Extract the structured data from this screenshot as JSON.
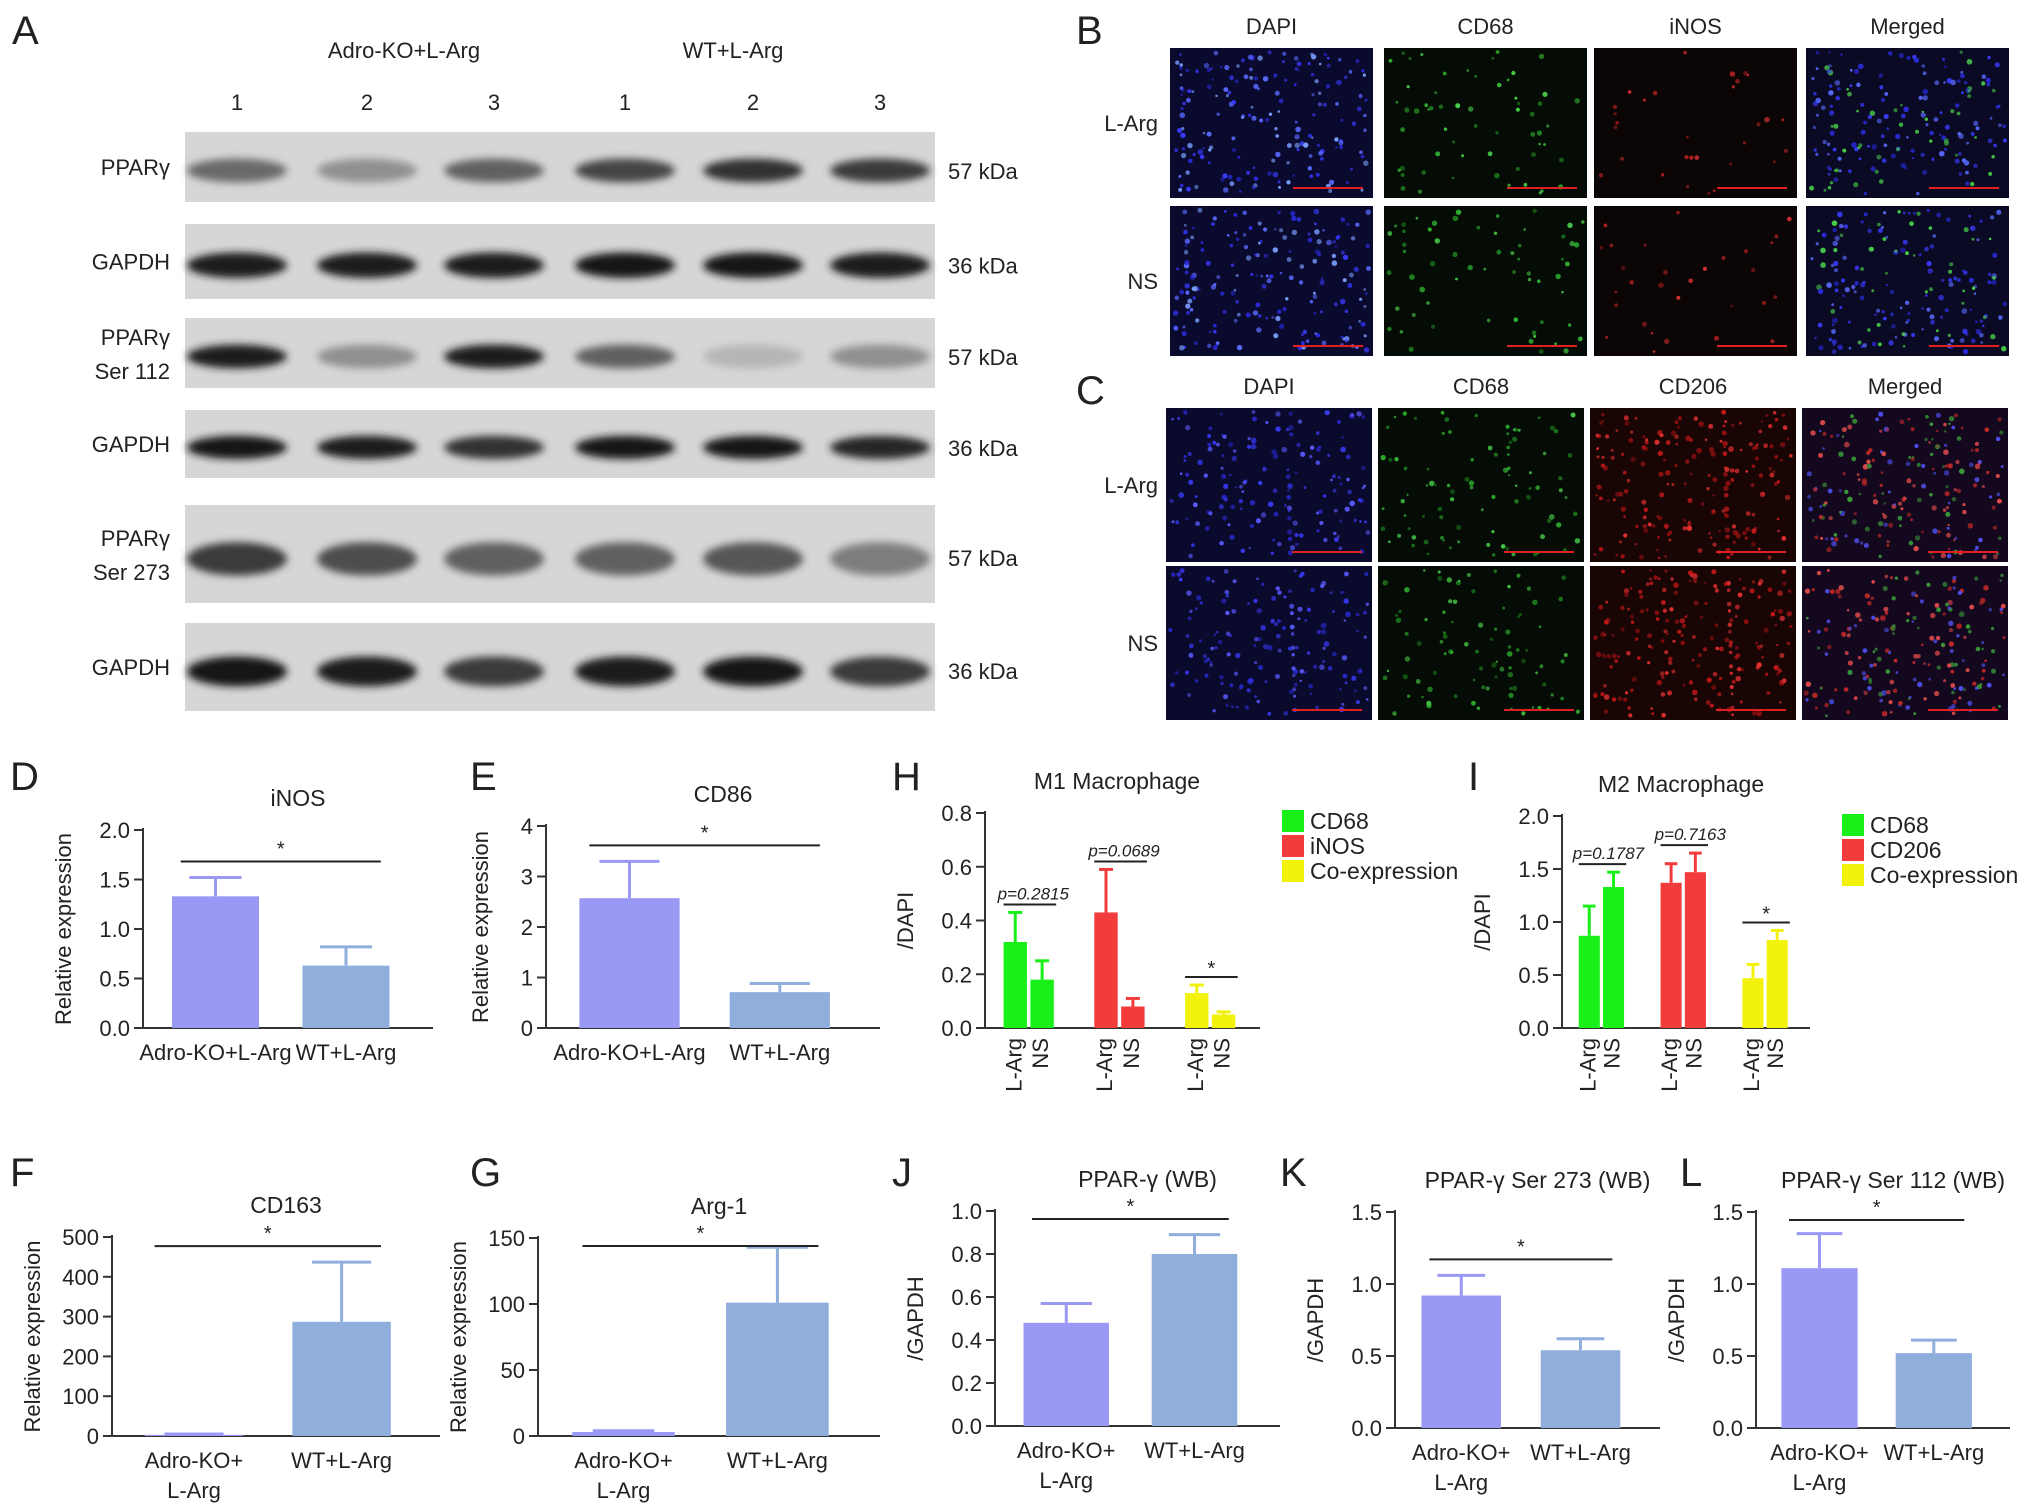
{
  "panels": {
    "A": {
      "letter": "A",
      "groups": [
        "Adro-KO+L-Arg",
        "WT+L-Arg"
      ],
      "lanes": [
        "1",
        "2",
        "3",
        "1",
        "2",
        "3"
      ],
      "rows": [
        {
          "label": [
            "PPARγ"
          ],
          "kda": "57 kDa",
          "bands": [
            0.55,
            0.35,
            0.6,
            0.75,
            0.85,
            0.8
          ]
        },
        {
          "label": [
            "GAPDH"
          ],
          "kda": "36 kDa",
          "bands": [
            0.95,
            0.95,
            0.95,
            1.0,
            1.0,
            0.95
          ]
        },
        {
          "label": [
            "PPARγ",
            "Ser 112"
          ],
          "kda": "57 kDa",
          "bands": [
            0.95,
            0.35,
            0.95,
            0.6,
            0.15,
            0.35
          ]
        },
        {
          "label": [
            "GAPDH"
          ],
          "kda": "36 kDa",
          "bands": [
            1.0,
            0.95,
            0.85,
            1.0,
            1.0,
            0.9
          ]
        },
        {
          "label": [
            "PPARγ",
            "Ser 273"
          ],
          "kda": "57 kDa",
          "bands": [
            0.8,
            0.7,
            0.6,
            0.6,
            0.65,
            0.45
          ]
        },
        {
          "label": [
            "GAPDH"
          ],
          "kda": "36 kDa",
          "bands": [
            1.0,
            0.95,
            0.8,
            0.95,
            1.0,
            0.8
          ]
        }
      ]
    },
    "B": {
      "letter": "B",
      "columns": [
        "DAPI",
        "CD68",
        "iNOS",
        "Merged"
      ],
      "rows": [
        "L-Arg",
        "NS"
      ]
    },
    "C": {
      "letter": "C",
      "columns": [
        "DAPI",
        "CD68",
        "CD206",
        "Merged"
      ],
      "rows": [
        "L-Arg",
        "NS"
      ]
    }
  },
  "chart_data": [
    {
      "id": "D",
      "type": "bar",
      "title": "iNOS",
      "ylabel": "Relative expression",
      "xlabel": "",
      "categories": [
        [
          "Adro-KO+L-Arg"
        ],
        [
          "WT+L-Arg"
        ]
      ],
      "values": [
        1.33,
        0.63
      ],
      "errors": [
        0.19,
        0.19
      ],
      "ylim": [
        0,
        2
      ],
      "yticks": [
        "0.0",
        "0.5",
        "1.0",
        "1.5",
        "2.0"
      ],
      "significance": "*",
      "colors": [
        "#9999f5",
        "#8faedb"
      ]
    },
    {
      "id": "E",
      "type": "bar",
      "title": "CD86",
      "ylabel": "Relative expression",
      "xlabel": "",
      "categories": [
        [
          "Adro-KO+L-Arg"
        ],
        [
          "WT+L-Arg"
        ]
      ],
      "values": [
        2.57,
        0.71
      ],
      "errors": [
        0.73,
        0.17
      ],
      "ylim": [
        0,
        4
      ],
      "yticks": [
        "0",
        "1",
        "2",
        "3",
        "4"
      ],
      "significance": "*",
      "colors": [
        "#9999f5",
        "#8faedb"
      ]
    },
    {
      "id": "F",
      "type": "bar",
      "title": "CD163",
      "ylabel": "Relative expression",
      "xlabel": "",
      "categories": [
        [
          "Adro-KO+",
          "L-Arg"
        ],
        [
          "WT+L-Arg"
        ]
      ],
      "values": [
        3,
        287
      ],
      "errors": [
        2,
        150
      ],
      "ylim": [
        0,
        500
      ],
      "yticks": [
        "0",
        "100",
        "200",
        "300",
        "400",
        "500"
      ],
      "significance": "*",
      "colors": [
        "#9999f5",
        "#8faedb"
      ]
    },
    {
      "id": "G",
      "type": "bar",
      "title": "Arg-1",
      "ylabel": "Relative expression",
      "xlabel": "",
      "categories": [
        [
          "Adro-KO+",
          "L-Arg"
        ],
        [
          "WT+L-Arg"
        ]
      ],
      "values": [
        3,
        101
      ],
      "errors": [
        1,
        42
      ],
      "ylim": [
        0,
        150
      ],
      "yticks": [
        "0",
        "50",
        "100",
        "150"
      ],
      "significance": "*",
      "colors": [
        "#9999f5",
        "#8faedb"
      ]
    },
    {
      "id": "H",
      "type": "bar",
      "title": "M1 Macrophage",
      "ylabel": "/DAPI",
      "xlabel": "",
      "categories": [
        [
          "L-Arg"
        ],
        [
          "NS"
        ],
        [
          "L-Arg"
        ],
        [
          "NS"
        ],
        [
          "L-Arg"
        ],
        [
          "NS"
        ]
      ],
      "values": [
        0.32,
        0.18,
        0.43,
        0.08,
        0.13,
        0.05
      ],
      "errors": [
        0.11,
        0.07,
        0.16,
        0.03,
        0.03,
        0.01
      ],
      "ylim": [
        0,
        0.8
      ],
      "yticks": [
        "0.0",
        "0.2",
        "0.4",
        "0.6",
        "0.8"
      ],
      "colors": [
        "#19f019",
        "#19f019",
        "#f23b3b",
        "#f23b3b",
        "#f2f20d",
        "#f2f20d"
      ],
      "legend": {
        "position": "top-right",
        "entries": [
          {
            "name": "CD68",
            "color": "#19f019"
          },
          {
            "name": "iNOS",
            "color": "#f23b3b"
          },
          {
            "name": "Co-expression",
            "color": "#f2f20d"
          }
        ]
      },
      "comparisons": [
        {
          "a": 0,
          "b": 1,
          "text": "p=0.2815"
        },
        {
          "a": 2,
          "b": 3,
          "text": "p=0.0689"
        },
        {
          "a": 4,
          "b": 5,
          "text": "*"
        }
      ]
    },
    {
      "id": "I",
      "type": "bar",
      "title": "M2 Macrophage",
      "ylabel": "/DAPI",
      "xlabel": "",
      "categories": [
        [
          "L-Arg"
        ],
        [
          "NS"
        ],
        [
          "L-Arg"
        ],
        [
          "NS"
        ],
        [
          "L-Arg"
        ],
        [
          "NS"
        ]
      ],
      "values": [
        0.87,
        1.33,
        1.37,
        1.47,
        0.47,
        0.83
      ],
      "errors": [
        0.28,
        0.14,
        0.18,
        0.18,
        0.13,
        0.09
      ],
      "ylim": [
        0,
        2
      ],
      "yticks": [
        "0.0",
        "0.5",
        "1.0",
        "1.5",
        "2.0"
      ],
      "colors": [
        "#19f019",
        "#19f019",
        "#f23b3b",
        "#f23b3b",
        "#f2f20d",
        "#f2f20d"
      ],
      "legend": {
        "position": "top-right",
        "entries": [
          {
            "name": "CD68",
            "color": "#19f019"
          },
          {
            "name": "CD206",
            "color": "#f23b3b"
          },
          {
            "name": "Co-expression",
            "color": "#f2f20d"
          }
        ]
      },
      "comparisons": [
        {
          "a": 0,
          "b": 1,
          "text": "p=0.1787"
        },
        {
          "a": 2,
          "b": 3,
          "text": "p=0.7163"
        },
        {
          "a": 4,
          "b": 5,
          "text": "*"
        }
      ]
    },
    {
      "id": "J",
      "type": "bar",
      "title": "PPAR-γ (WB)",
      "ylabel": "/GAPDH",
      "xlabel": "",
      "categories": [
        [
          "Adro-KO+",
          "L-Arg"
        ],
        [
          "WT+L-Arg"
        ]
      ],
      "values": [
        0.48,
        0.8
      ],
      "errors": [
        0.09,
        0.09
      ],
      "ylim": [
        0,
        1
      ],
      "yticks": [
        "0.0",
        "0.2",
        "0.4",
        "0.6",
        "0.8",
        "1.0"
      ],
      "significance": "*",
      "colors": [
        "#9999f5",
        "#8faedb"
      ]
    },
    {
      "id": "K",
      "type": "bar",
      "title": "PPAR-γ Ser 273 (WB)",
      "ylabel": "/GAPDH",
      "xlabel": "",
      "categories": [
        [
          "Adro-KO+",
          "L-Arg"
        ],
        [
          "WT+L-Arg"
        ]
      ],
      "values": [
        0.92,
        0.54
      ],
      "errors": [
        0.14,
        0.08
      ],
      "ylim": [
        0,
        1.5
      ],
      "yticks": [
        "0.0",
        "0.5",
        "1.0",
        "1.5"
      ],
      "significance": "*",
      "colors": [
        "#9999f5",
        "#8faedb"
      ]
    },
    {
      "id": "L",
      "type": "bar",
      "title": "PPAR-γ Ser 112 (WB)",
      "ylabel": "/GAPDH",
      "xlabel": "",
      "categories": [
        [
          "Adro-KO+",
          "L-Arg"
        ],
        [
          "WT+L-Arg"
        ]
      ],
      "values": [
        1.11,
        0.52
      ],
      "errors": [
        0.24,
        0.09
      ],
      "ylim": [
        0,
        1.5
      ],
      "yticks": [
        "0.0",
        "0.5",
        "1.0",
        "1.5"
      ],
      "significance": "*",
      "colors": [
        "#9999f5",
        "#8faedb"
      ]
    }
  ]
}
